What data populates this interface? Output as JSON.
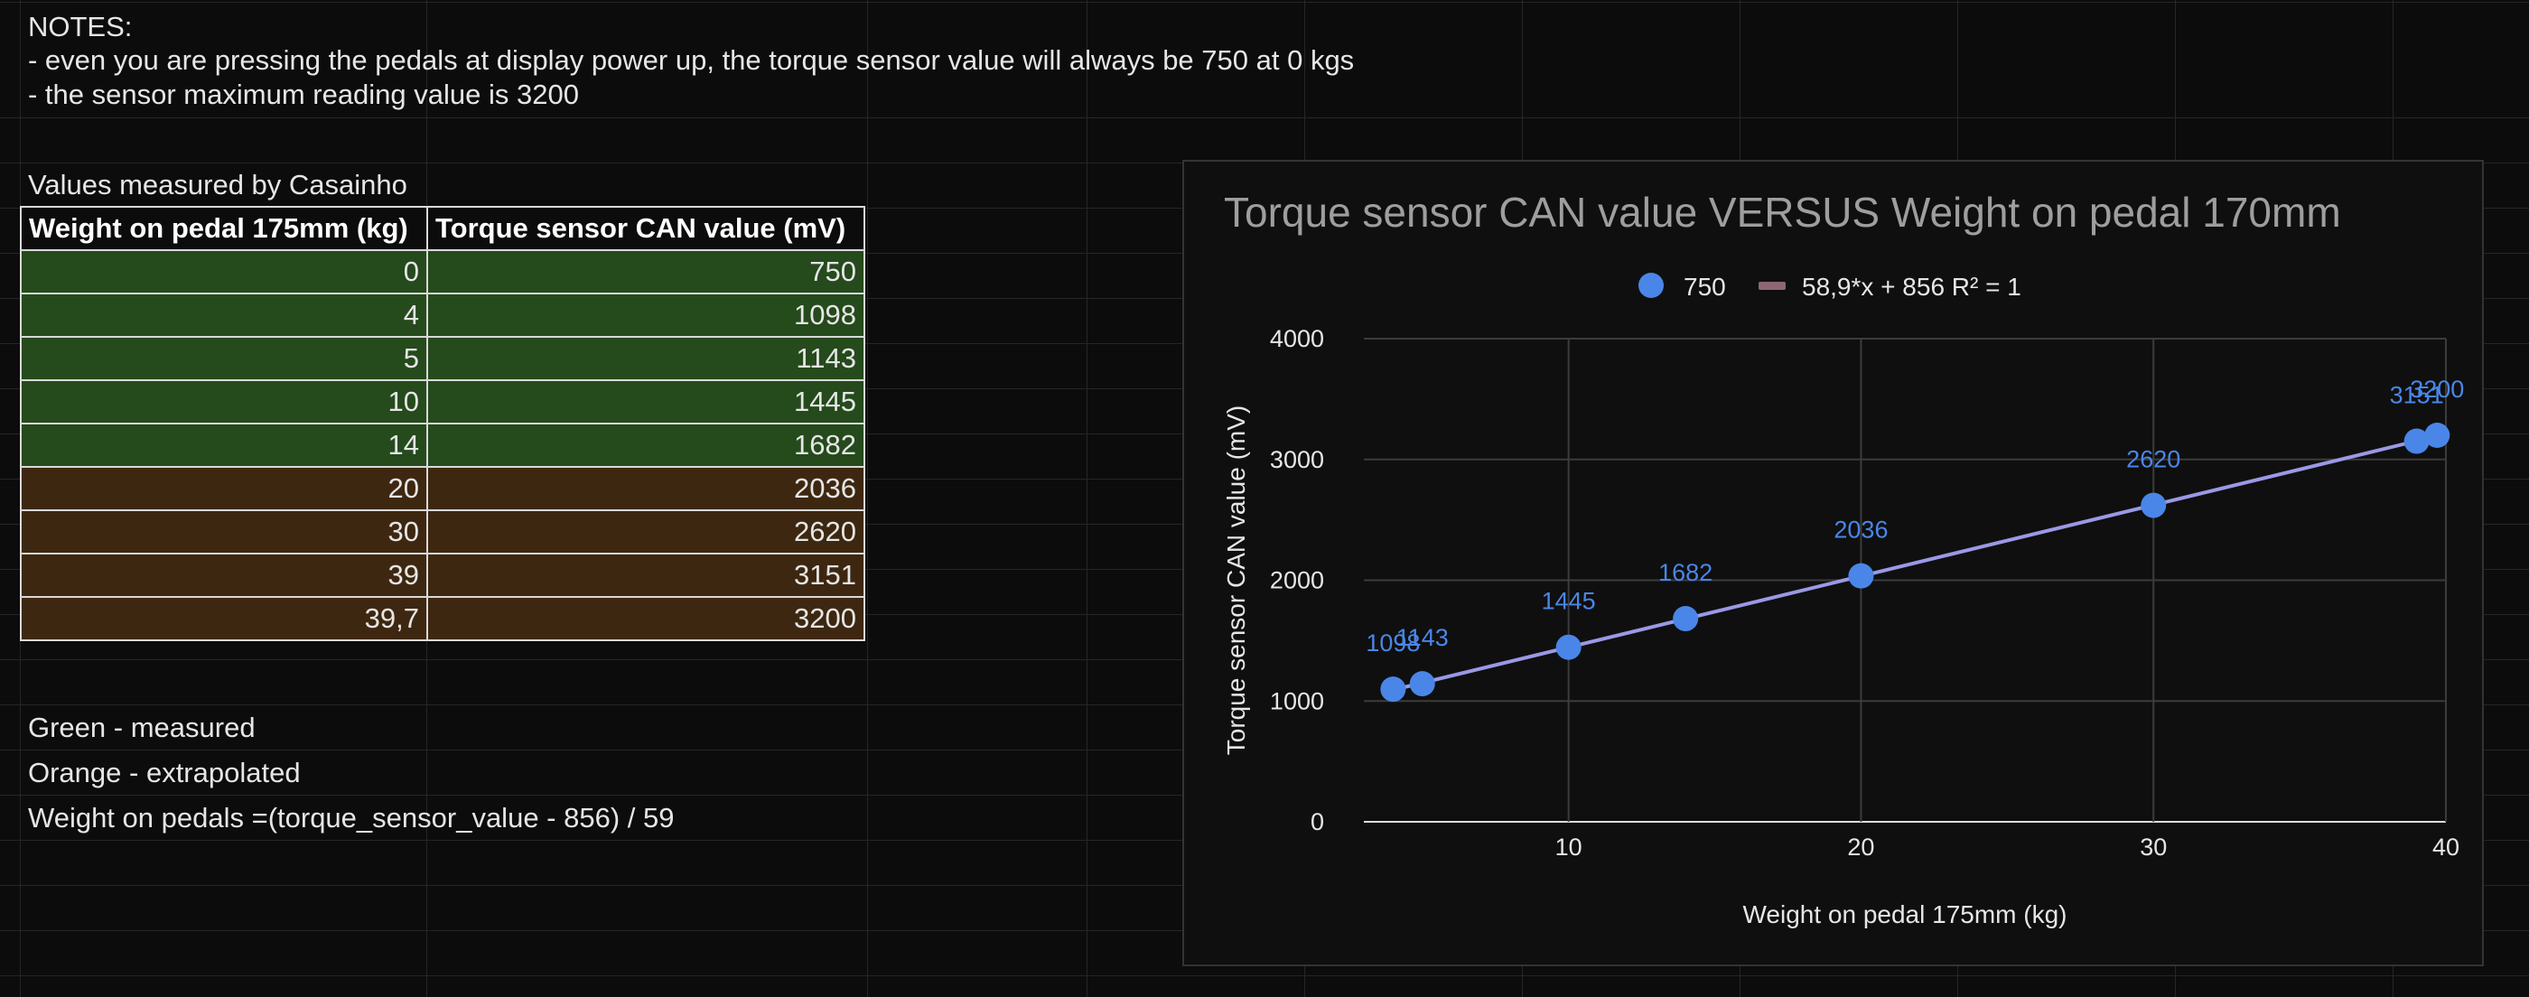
{
  "notes": {
    "heading": "NOTES:",
    "line1": "- even you are pressing the pedals at display power up, the torque sensor value will always be 750 at 0 kgs",
    "line2": "- the sensor maximum reading value is 3200"
  },
  "table": {
    "caption": "Values measured by Casainho",
    "headers": [
      "Weight on pedal 175mm (kg)",
      "Torque sensor CAN value (mV)"
    ],
    "rows": [
      {
        "weight": "0",
        "value": "750",
        "kind": "measured"
      },
      {
        "weight": "4",
        "value": "1098",
        "kind": "measured"
      },
      {
        "weight": "5",
        "value": "1143",
        "kind": "measured"
      },
      {
        "weight": "10",
        "value": "1445",
        "kind": "measured"
      },
      {
        "weight": "14",
        "value": "1682",
        "kind": "measured"
      },
      {
        "weight": "20",
        "value": "2036",
        "kind": "extrapolated"
      },
      {
        "weight": "30",
        "value": "2620",
        "kind": "extrapolated"
      },
      {
        "weight": "39",
        "value": "3151",
        "kind": "extrapolated"
      },
      {
        "weight": "39,7",
        "value": "3200",
        "kind": "extrapolated"
      }
    ]
  },
  "legend_notes": {
    "green": "Green - measured",
    "orange": "Orange - extrapolated",
    "formula": "Weight on pedals =(torque_sensor_value - 856) / 59"
  },
  "colors": {
    "measured_fill": "#254a1c",
    "extrapolated_fill": "#3e2710",
    "point": "#4a86e8",
    "trendline": "#9999e6",
    "trend_legend": "#8e6673",
    "chart_title": "#9e9e9e"
  },
  "chart_data": {
    "type": "scatter",
    "title": "Torque sensor CAN value VERSUS Weight on pedal 170mm",
    "xlabel": "Weight on pedal 175mm (kg)",
    "ylabel": "Torque sensor CAN value (mV)",
    "xlim": [
      3,
      40
    ],
    "ylim": [
      0,
      4000
    ],
    "xticks": [
      10,
      20,
      30,
      40
    ],
    "yticks": [
      0,
      1000,
      2000,
      3000,
      4000
    ],
    "grid": true,
    "legend_position": "top",
    "series": [
      {
        "name": "750",
        "points": [
          {
            "x": 4,
            "y": 1098,
            "label": "1098"
          },
          {
            "x": 5,
            "y": 1143,
            "label": "1143"
          },
          {
            "x": 10,
            "y": 1445,
            "label": "1445"
          },
          {
            "x": 14,
            "y": 1682,
            "label": "1682"
          },
          {
            "x": 20,
            "y": 2036,
            "label": "2036"
          },
          {
            "x": 30,
            "y": 2620,
            "label": "2620"
          },
          {
            "x": 39,
            "y": 3151,
            "label": "3151"
          },
          {
            "x": 39.7,
            "y": 3200,
            "label": "3200"
          }
        ]
      }
    ],
    "trendline": {
      "label": "58,9*x + 856 R² = 1",
      "slope": 58.9,
      "intercept": 856
    }
  }
}
